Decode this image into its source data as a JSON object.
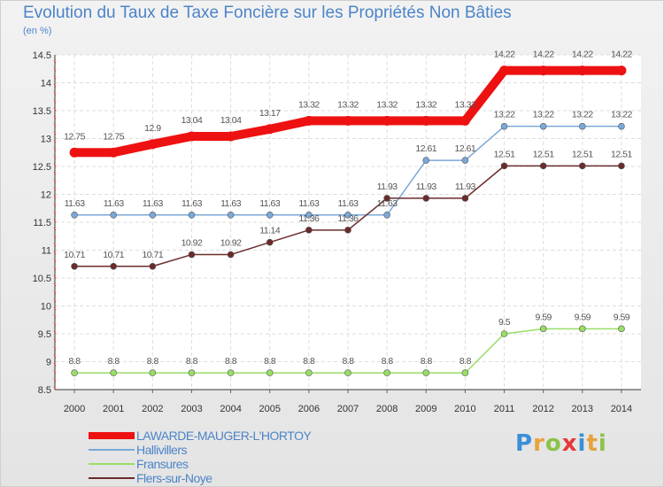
{
  "chart_data": {
    "type": "line",
    "title": "Evolution du Taux de Taxe Foncière sur les Propriétés Non Bâties",
    "subtitle": "(en %)",
    "x": [
      "2000",
      "2001",
      "2002",
      "2003",
      "2004",
      "2005",
      "2006",
      "2007",
      "2008",
      "2009",
      "2010",
      "2011",
      "2012",
      "2013",
      "2014"
    ],
    "ylim": [
      8.5,
      14.5
    ],
    "yticks": [
      8.5,
      9,
      9.5,
      10,
      10.5,
      11,
      11.5,
      12,
      12.5,
      13,
      13.5,
      14,
      14.5
    ],
    "grid": true,
    "legend_position": "bottom-left",
    "series": [
      {
        "name": "LAWARDE-MAUGER-L'HORTOY",
        "color": "#ee1111",
        "values": [
          12.75,
          12.75,
          12.9,
          13.04,
          13.04,
          13.17,
          13.32,
          13.32,
          13.32,
          13.32,
          13.32,
          14.22,
          14.22,
          14.22,
          14.22
        ]
      },
      {
        "name": "Hallivillers",
        "color": "#7aa8d8",
        "values": [
          11.63,
          11.63,
          11.63,
          11.63,
          11.63,
          11.63,
          11.63,
          11.63,
          11.63,
          12.61,
          12.61,
          13.22,
          13.22,
          13.22,
          13.22
        ]
      },
      {
        "name": "Fransures",
        "color": "#99dd66",
        "values": [
          8.8,
          8.8,
          8.8,
          8.8,
          8.8,
          8.8,
          8.8,
          8.8,
          8.8,
          8.8,
          8.8,
          9.5,
          9.59,
          9.59,
          9.59
        ]
      },
      {
        "name": "Flers-sur-Noye",
        "color": "#6b2b2b",
        "values": [
          10.71,
          10.71,
          10.71,
          10.92,
          10.92,
          11.14,
          11.36,
          11.36,
          11.93,
          11.93,
          11.93,
          12.51,
          12.51,
          12.51,
          12.51
        ]
      }
    ]
  },
  "brand": {
    "letters": [
      "P",
      "r",
      "o",
      "x",
      "i",
      "t",
      "i"
    ],
    "colors": [
      "#3a8fd8",
      "#e6a23c",
      "#8bc34a",
      "#e53935",
      "#3a8fd8",
      "#e6a23c",
      "#8bc34a"
    ]
  }
}
